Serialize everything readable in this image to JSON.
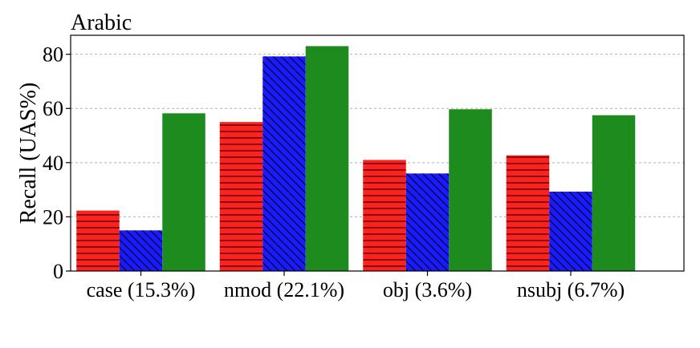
{
  "chart_data": {
    "type": "bar",
    "title": "Arabic",
    "xlabel": "",
    "ylabel": "Recall (UAS%)",
    "ylim": [
      0,
      87
    ],
    "yticks": [
      0,
      20,
      40,
      60,
      80
    ],
    "grid": "horizontal dashed",
    "categories": [
      "case (15.3%)",
      "nmod (22.1%)",
      "obj (3.6%)",
      "nsubj (6.7%)"
    ],
    "series": [
      {
        "color": "#ff2020",
        "hatch": "horizontal",
        "values": [
          22.3,
          55.0,
          41.0,
          42.7
        ]
      },
      {
        "color": "#1a1aff",
        "hatch": "diagonal",
        "values": [
          15.0,
          79.2,
          36.0,
          29.3
        ]
      },
      {
        "color": "#1e8b1e",
        "hatch": "none",
        "values": [
          58.2,
          83.0,
          59.7,
          57.5
        ]
      }
    ]
  }
}
